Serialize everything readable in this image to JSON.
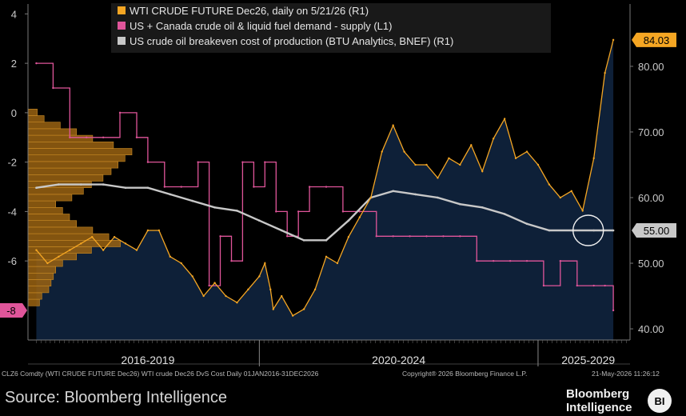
{
  "chart_data": {
    "type": "line",
    "legend": [
      {
        "label": "WTI CRUDE FUTURE Dec26, daily on 5/21/26 (R1)",
        "color": "#f5a623"
      },
      {
        "label": "US + Canada crude oil & liquid fuel demand - supply (L1)",
        "color": "#e0559a"
      },
      {
        "label": "US crude oil breakeven cost of production (BTU Analytics, BNEF) (R1)",
        "color": "#c8c8c8"
      }
    ],
    "legend_placement": "top-left",
    "left_axis": {
      "ticks": [
        "4",
        "2",
        "0",
        "-2",
        "-4",
        "-6"
      ],
      "range": [
        -9.2,
        4.4
      ]
    },
    "right_axis": {
      "ticks": [
        "80.00",
        "70.00",
        "60.00",
        "50.00",
        "40.00"
      ],
      "range": [
        38.3,
        89.5
      ]
    },
    "period_labels": [
      "2016-2019",
      "2020-2024",
      "2025-2029"
    ],
    "badges": {
      "wti_last": "84.03",
      "breakeven_last": "55.00",
      "demand_supply_last": "-8"
    },
    "series": [
      {
        "name": "WTI CRUDE FUTURE Dec26, daily on 5/21/26",
        "axis": "right",
        "x": [
          2016.0,
          2016.2,
          2016.4,
          2016.6,
          2016.8,
          2017.0,
          2017.2,
          2017.4,
          2017.6,
          2017.8,
          2018.0,
          2018.2,
          2018.4,
          2018.6,
          2018.8,
          2019.0,
          2019.2,
          2019.4,
          2019.6,
          2019.8,
          2020.0,
          2020.1,
          2020.2,
          2020.25,
          2020.4,
          2020.6,
          2020.8,
          2021.0,
          2021.2,
          2021.4,
          2021.6,
          2021.8,
          2022.0,
          2022.2,
          2022.4,
          2022.6,
          2022.8,
          2023.0,
          2023.2,
          2023.4,
          2023.6,
          2023.8,
          2024.0,
          2024.2,
          2024.4,
          2024.6,
          2024.8,
          2025.0,
          2025.2,
          2025.4,
          2025.6,
          2025.8,
          2026.0,
          2026.2,
          2026.35
        ],
        "values": [
          52,
          50,
          51,
          52,
          53,
          54,
          52,
          54,
          53,
          52,
          55,
          55,
          51,
          50,
          48,
          45,
          47,
          45,
          44,
          46,
          48,
          50,
          46,
          43,
          45,
          42,
          43,
          46,
          51,
          50,
          54,
          57,
          60,
          67,
          71,
          67,
          65,
          65,
          63,
          66,
          65,
          68,
          64,
          69,
          72,
          66,
          67,
          65,
          62,
          60,
          61,
          58,
          66,
          79,
          84.03
        ]
      },
      {
        "name": "US + Canada crude oil & liquid fuel demand - supply",
        "axis": "left",
        "x": [
          2016.0,
          2016.3,
          2016.6,
          2016.9,
          2017.2,
          2017.5,
          2017.8,
          2018.0,
          2018.3,
          2018.6,
          2018.9,
          2019.1,
          2019.3,
          2019.5,
          2019.7,
          2019.9,
          2020.1,
          2020.3,
          2020.5,
          2020.7,
          2020.9,
          2021.2,
          2021.5,
          2021.8,
          2022.1,
          2022.4,
          2022.7,
          2023.0,
          2023.3,
          2023.6,
          2023.9,
          2024.2,
          2024.5,
          2024.8,
          2025.1,
          2025.4,
          2025.7,
          2026.0,
          2026.2,
          2026.35
        ],
        "values": [
          2,
          1,
          -1,
          -1,
          -1,
          0,
          -1,
          -2,
          -3,
          -3,
          -2,
          -7,
          -5,
          -6,
          -2,
          -3,
          -2,
          -4,
          -5,
          -4,
          -3,
          -3,
          -4,
          -4,
          -5,
          -5,
          -5,
          -5,
          -5,
          -5,
          -6,
          -6,
          -6,
          -6,
          -7,
          -6,
          -7,
          -7,
          -7,
          -8
        ]
      },
      {
        "name": "US crude oil breakeven cost of production (BTU Analytics, BNEF)",
        "axis": "right",
        "x": [
          2016.0,
          2016.4,
          2016.8,
          2017.2,
          2017.6,
          2018.0,
          2018.4,
          2018.8,
          2019.2,
          2019.6,
          2020.0,
          2020.4,
          2020.8,
          2021.2,
          2021.6,
          2022.0,
          2022.4,
          2022.8,
          2023.2,
          2023.6,
          2024.0,
          2024.4,
          2024.8,
          2025.2,
          2025.6,
          2026.0,
          2026.35
        ],
        "values": [
          61.5,
          62,
          62,
          62,
          61.5,
          61.5,
          60.5,
          59.5,
          58.5,
          58,
          56.5,
          55,
          53.5,
          53.5,
          56.5,
          60,
          61,
          60.5,
          60,
          59,
          58.5,
          57.5,
          56,
          55,
          55,
          55,
          55
        ]
      }
    ],
    "volume_profile": {
      "axis": "right",
      "levels": [
        44,
        45,
        46,
        47,
        48,
        49,
        50,
        51,
        52,
        53,
        54,
        55,
        56,
        57,
        58,
        59,
        60,
        61,
        62,
        63,
        64,
        65,
        66,
        67,
        68,
        69,
        70,
        71,
        72,
        73
      ],
      "counts": [
        10,
        12,
        18,
        20,
        22,
        24,
        30,
        42,
        55,
        80,
        70,
        56,
        42,
        36,
        30,
        24,
        38,
        48,
        55,
        65,
        72,
        78,
        84,
        90,
        74,
        56,
        42,
        28,
        14,
        8
      ]
    }
  },
  "footer": {
    "ticker_line": "CLZ6 Comdty (WTI CRUDE FUTURE  Dec26) WTI crude Dec26 DvS Cost Daily 01JAN2016-31DEC2026",
    "copyright": "Copyright® 2026 Bloomberg Finance L.P.",
    "timestamp": "21-May-2026 11:26:12",
    "source": "Source: Bloomberg Intelligence",
    "brand_line1": "Bloomberg",
    "brand_line2": "Intelligence",
    "logo": "BI"
  }
}
